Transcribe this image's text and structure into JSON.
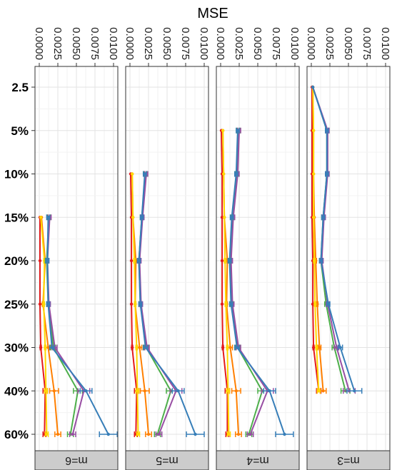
{
  "chart_data": {
    "type": "line",
    "title": "MSE",
    "ylabel": "",
    "xlabel": "",
    "xlim": [
      0,
      0.01
    ],
    "x_ticks": [
      "0.0000",
      "0.0025",
      "0.0050",
      "0.0075",
      "0.0100"
    ],
    "categories": [
      "2.5",
      "5%",
      "10%",
      "15%",
      "20%",
      "25%",
      "30%",
      "40%",
      "60%"
    ],
    "colors": {
      "red": "#e41a1c",
      "orange": "#ff7f00",
      "yellow": "#ffd700",
      "green": "#4daf4a",
      "purple": "#984ea3",
      "blue": "#377eb8"
    },
    "facets": [
      {
        "label": "m=6",
        "series": [
          {
            "color": "red",
            "values": [
              null,
              null,
              null,
              0.0001,
              0.0001,
              0.0001,
              0.0002,
              0.0008,
              0.0007
            ],
            "err": [
              null,
              null,
              null,
              0,
              0,
              0,
              8e-05,
              0.0003,
              0.0002
            ]
          },
          {
            "color": "orange",
            "values": [
              null,
              null,
              null,
              0.0003,
              0.0008,
              0.0005,
              0.0012,
              0.002,
              0.0025
            ],
            "err": [
              null,
              null,
              null,
              0,
              0.0002,
              0.0001,
              0.0003,
              0.0006,
              0.0004
            ]
          },
          {
            "color": "yellow",
            "values": [
              null,
              null,
              null,
              0.0002,
              0.0007,
              0.0006,
              0.0008,
              0.0009,
              0.001
            ],
            "err": [
              null,
              null,
              null,
              0,
              0.0001,
              0.0001,
              0.0001,
              0.0002,
              0.0002
            ]
          },
          {
            "color": "green",
            "values": [
              null,
              null,
              null,
              0.0013,
              0.001,
              0.0012,
              0.0019,
              0.0052,
              0.0042
            ],
            "err": [
              null,
              null,
              null,
              0.0002,
              0.0002,
              0.0002,
              0.0003,
              0.0006,
              0.0004
            ]
          },
          {
            "color": "purple",
            "values": [
              null,
              null,
              null,
              0.0014,
              0.0011,
              0.0013,
              0.0021,
              0.006,
              0.0045
            ],
            "err": [
              null,
              null,
              null,
              0.0002,
              0.0002,
              0.0002,
              0.0003,
              0.0008,
              0.0004
            ]
          },
          {
            "color": "blue",
            "values": [
              null,
              null,
              null,
              0.0012,
              0.0011,
              0.0012,
              0.0017,
              0.0063,
              0.0093
            ],
            "err": [
              null,
              null,
              null,
              0.0002,
              0.0002,
              0.0002,
              0.0003,
              0.0008,
              0.0012
            ]
          }
        ]
      },
      {
        "label": "m=5",
        "series": [
          {
            "color": "red",
            "values": [
              null,
              null,
              0.0001,
              0.0002,
              0.0002,
              0.0002,
              0.0003,
              0.0009,
              0.0008
            ],
            "err": [
              null,
              null,
              0,
              0,
              0,
              0,
              8e-05,
              0.0003,
              0.0002
            ]
          },
          {
            "color": "orange",
            "values": [
              null,
              null,
              0.0003,
              0.0004,
              0.0008,
              0.0007,
              0.0013,
              0.002,
              0.0025
            ],
            "err": [
              null,
              null,
              0,
              0,
              0.0002,
              0.0001,
              0.0003,
              0.0006,
              0.0004
            ]
          },
          {
            "color": "yellow",
            "values": [
              null,
              null,
              0.0003,
              0.0004,
              0.0006,
              0.0007,
              0.0009,
              0.001,
              0.0011
            ],
            "err": [
              null,
              null,
              0,
              0,
              0.0001,
              0.0001,
              0.0001,
              0.0002,
              0.0002
            ]
          },
          {
            "color": "green",
            "values": [
              null,
              null,
              0.0021,
              0.0016,
              0.0012,
              0.0014,
              0.0022,
              0.0055,
              0.0037
            ],
            "err": [
              null,
              null,
              0.0002,
              0.0002,
              0.0002,
              0.0002,
              0.0003,
              0.0006,
              0.0004
            ]
          },
          {
            "color": "purple",
            "values": [
              null,
              null,
              0.0022,
              0.0017,
              0.0013,
              0.0015,
              0.0023,
              0.0062,
              0.0039
            ],
            "err": [
              null,
              null,
              0.0002,
              0.0002,
              0.0002,
              0.0002,
              0.0003,
              0.0008,
              0.0004
            ]
          },
          {
            "color": "blue",
            "values": [
              null,
              null,
              0.002,
              0.0016,
              0.0012,
              0.0014,
              0.0021,
              0.0065,
              0.0088
            ],
            "err": [
              null,
              null,
              0.0002,
              0.0002,
              0.0002,
              0.0002,
              0.0003,
              0.0008,
              0.0012
            ]
          }
        ]
      },
      {
        "label": "m=4",
        "series": [
          {
            "color": "red",
            "values": [
              null,
              0.0001,
              0.0002,
              0.0002,
              0.0002,
              0.0002,
              0.0003,
              0.0009,
              0.0009
            ],
            "err": [
              null,
              0,
              0,
              0,
              0,
              0,
              8e-05,
              0.0003,
              0.0002
            ]
          },
          {
            "color": "orange",
            "values": [
              null,
              0.0003,
              0.0004,
              0.0005,
              0.0009,
              0.0008,
              0.0013,
              0.0021,
              0.0024
            ],
            "err": [
              null,
              0,
              0,
              0,
              0.0002,
              0.0001,
              0.0003,
              0.0006,
              0.0004
            ]
          },
          {
            "color": "yellow",
            "values": [
              null,
              0.0003,
              0.0004,
              0.0005,
              0.0006,
              0.0007,
              0.0009,
              0.001,
              0.0011
            ],
            "err": [
              null,
              0,
              0,
              0,
              0.0001,
              0.0001,
              0.0001,
              0.0002,
              0.0002
            ]
          },
          {
            "color": "green",
            "values": [
              null,
              0.0024,
              0.0022,
              0.0016,
              0.0013,
              0.0015,
              0.0023,
              0.0056,
              0.0038
            ],
            "err": [
              null,
              0.0002,
              0.0002,
              0.0002,
              0.0002,
              0.0002,
              0.0003,
              0.0006,
              0.0004
            ]
          },
          {
            "color": "purple",
            "values": [
              null,
              0.0025,
              0.0023,
              0.0017,
              0.0014,
              0.0016,
              0.0024,
              0.0063,
              0.004
            ],
            "err": [
              null,
              0.0002,
              0.0002,
              0.0002,
              0.0002,
              0.0002,
              0.0003,
              0.0008,
              0.0004
            ]
          },
          {
            "color": "blue",
            "values": [
              null,
              0.0023,
              0.0021,
              0.0015,
              0.0012,
              0.0014,
              0.0022,
              0.0066,
              0.0086
            ],
            "err": [
              null,
              0.0002,
              0.0002,
              0.0002,
              0.0002,
              0.0002,
              0.0003,
              0.0008,
              0.0012
            ]
          }
        ]
      },
      {
        "label": "m=3",
        "series": [
          {
            "color": "red",
            "values": [
              0.0001,
              0.0001,
              0.0001,
              0.0001,
              0.0002,
              0.0002,
              0.0003,
              0.001,
              null
            ],
            "err": [
              0,
              0,
              0,
              0,
              0,
              0,
              8e-05,
              0.0003,
              null
            ]
          },
          {
            "color": "orange",
            "values": [
              0.0002,
              0.0003,
              0.0003,
              0.0004,
              0.0006,
              0.0008,
              0.0011,
              0.0016,
              null
            ],
            "err": [
              0,
              0,
              0,
              0,
              0.0001,
              0.0001,
              0.0002,
              0.0004,
              null
            ]
          },
          {
            "color": "yellow",
            "values": [
              0.0002,
              0.0003,
              0.0003,
              0.0003,
              0.0004,
              0.0005,
              0.0007,
              0.001,
              null
            ],
            "err": [
              0,
              0,
              0,
              0,
              0.0001,
              0.0001,
              0.0001,
              0.0002,
              null
            ]
          },
          {
            "color": "green",
            "values": [
              0.0002,
              0.0021,
              0.0021,
              0.0016,
              0.0013,
              0.002,
              0.0031,
              0.0046,
              null
            ],
            "err": [
              0,
              0.0002,
              0.0002,
              0.0002,
              0.0002,
              0.0002,
              0.0003,
              0.0006,
              null
            ]
          },
          {
            "color": "purple",
            "values": [
              0.0002,
              0.0022,
              0.0022,
              0.0017,
              0.0014,
              0.0022,
              0.0034,
              0.0051,
              null
            ],
            "err": [
              0,
              0.0002,
              0.0002,
              0.0002,
              0.0002,
              0.0002,
              0.0003,
              0.0008,
              null
            ]
          },
          {
            "color": "blue",
            "values": [
              0.0002,
              0.0021,
              0.0021,
              0.0016,
              0.0013,
              0.0023,
              0.0039,
              0.0058,
              null
            ],
            "err": [
              0,
              0.0002,
              0.0002,
              0.0002,
              0.0002,
              0.0002,
              0.0003,
              0.001,
              null
            ]
          }
        ]
      }
    ]
  }
}
